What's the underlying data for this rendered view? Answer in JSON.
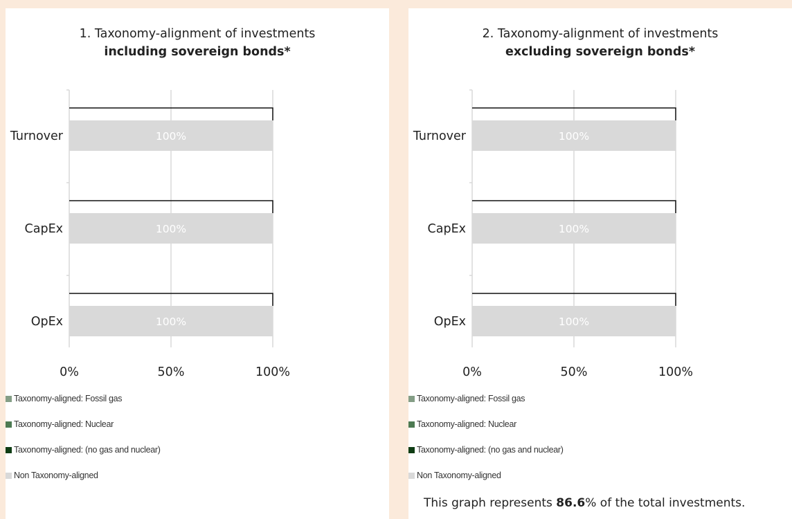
{
  "chart_data": [
    {
      "type": "bar",
      "orientation": "horizontal",
      "stacked": true,
      "title": "1. Taxonomy-alignment of investments",
      "subtitle": "including sovereign bonds*",
      "categories": [
        "Turnover",
        "CapEx",
        "OpEx"
      ],
      "series": [
        {
          "name": "Taxonomy-aligned: Fossil gas",
          "color": "#849e86",
          "values": [
            0,
            0,
            0
          ]
        },
        {
          "name": "Taxonomy-aligned: Nuclear",
          "color": "#4d7a52",
          "values": [
            0,
            0,
            0
          ]
        },
        {
          "name": "Taxonomy-aligned: (no gas and nuclear)",
          "color": "#0f3d14",
          "values": [
            0,
            0,
            0
          ]
        },
        {
          "name": "Non Taxonomy-aligned",
          "color": "#d9d9d9",
          "values": [
            100,
            100,
            100
          ]
        }
      ],
      "data_labels": [
        "100%",
        "100%",
        "100%"
      ],
      "xticks": [
        "0%",
        "50%",
        "100%"
      ],
      "xlim": [
        0,
        100
      ],
      "grid": true,
      "legend_position": "bottom-left"
    },
    {
      "type": "bar",
      "orientation": "horizontal",
      "stacked": true,
      "title": "2. Taxonomy-alignment of investments",
      "subtitle": "excluding sovereign bonds*",
      "categories": [
        "Turnover",
        "CapEx",
        "OpEx"
      ],
      "series": [
        {
          "name": "Taxonomy-aligned: Fossil gas",
          "color": "#849e86",
          "values": [
            0,
            0,
            0
          ]
        },
        {
          "name": "Taxonomy-aligned: Nuclear",
          "color": "#4d7a52",
          "values": [
            0,
            0,
            0
          ]
        },
        {
          "name": "Taxonomy-aligned: (no gas and nuclear)",
          "color": "#0f3d14",
          "values": [
            0,
            0,
            0
          ]
        },
        {
          "name": "Non Taxonomy-aligned",
          "color": "#d9d9d9",
          "values": [
            100,
            100,
            100
          ]
        }
      ],
      "data_labels": [
        "100%",
        "100%",
        "100%"
      ],
      "xticks": [
        "0%",
        "50%",
        "100%"
      ],
      "xlim": [
        0,
        100
      ],
      "grid": true,
      "legend_position": "bottom-left"
    }
  ],
  "note": {
    "prefix": "This graph represents ",
    "value": "86.6",
    "suffix": "% of the total investments."
  }
}
